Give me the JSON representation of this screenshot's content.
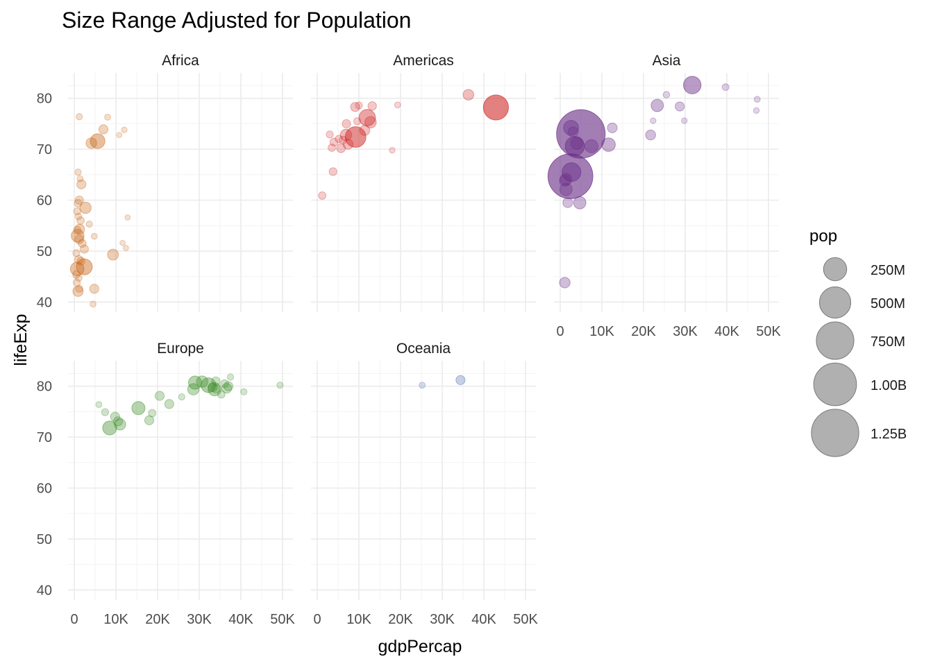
{
  "chart_data": {
    "type": "scatter",
    "title": "Size Range Adjusted for Population",
    "xlabel": "gdpPercap",
    "ylabel": "lifeExp",
    "xlim": [
      -1500,
      52500
    ],
    "ylim": [
      38,
      85
    ],
    "x_ticks": [
      0,
      10000,
      20000,
      30000,
      40000,
      50000
    ],
    "x_tick_labels": [
      "0",
      "10K",
      "20K",
      "30K",
      "40K",
      "50K"
    ],
    "y_ticks": [
      40,
      50,
      60,
      70,
      80
    ],
    "y_tick_labels": [
      "40",
      "50",
      "60",
      "70",
      "80"
    ],
    "grid": true,
    "facets": [
      {
        "name": "Africa",
        "color": "#c86414",
        "points": [
          {
            "gdp": 1200,
            "life": 76.4,
            "pop": 5
          },
          {
            "gdp": 8000,
            "life": 76.3,
            "pop": 4
          },
          {
            "gdp": 7000,
            "life": 73.9,
            "pop": 20
          },
          {
            "gdp": 12000,
            "life": 73.8,
            "pop": 3
          },
          {
            "gdp": 10800,
            "life": 72.8,
            "pop": 2
          },
          {
            "gdp": 5600,
            "life": 71.6,
            "pop": 80
          },
          {
            "gdp": 4100,
            "life": 71.2,
            "pop": 33
          },
          {
            "gdp": 900,
            "life": 65.5,
            "pop": 5
          },
          {
            "gdp": 1400,
            "life": 64.2,
            "pop": 4
          },
          {
            "gdp": 1700,
            "life": 63.1,
            "pop": 20
          },
          {
            "gdp": 1200,
            "life": 60.0,
            "pop": 15
          },
          {
            "gdp": 900,
            "life": 59.4,
            "pop": 10
          },
          {
            "gdp": 2700,
            "life": 58.5,
            "pop": 40
          },
          {
            "gdp": 700,
            "life": 57.8,
            "pop": 8
          },
          {
            "gdp": 1000,
            "life": 56.8,
            "pop": 6
          },
          {
            "gdp": 12800,
            "life": 56.6,
            "pop": 2
          },
          {
            "gdp": 1500,
            "life": 56.0,
            "pop": 10
          },
          {
            "gdp": 3600,
            "life": 55.3,
            "pop": 5
          },
          {
            "gdp": 1300,
            "life": 54.3,
            "pop": 25
          },
          {
            "gdp": 700,
            "life": 54.1,
            "pop": 10
          },
          {
            "gdp": 800,
            "life": 53.0,
            "pop": 55
          },
          {
            "gdp": 4800,
            "life": 52.9,
            "pop": 4
          },
          {
            "gdp": 1200,
            "life": 52.3,
            "pop": 20
          },
          {
            "gdp": 1900,
            "life": 51.5,
            "pop": 12
          },
          {
            "gdp": 11600,
            "life": 51.6,
            "pop": 2
          },
          {
            "gdp": 2400,
            "life": 50.4,
            "pop": 15
          },
          {
            "gdp": 12400,
            "life": 50.6,
            "pop": 2
          },
          {
            "gdp": 500,
            "life": 49.6,
            "pop": 8
          },
          {
            "gdp": 9300,
            "life": 49.3,
            "pop": 35
          },
          {
            "gdp": 1100,
            "life": 48.3,
            "pop": 15
          },
          {
            "gdp": 1600,
            "life": 48.0,
            "pop": 12
          },
          {
            "gdp": 700,
            "life": 46.5,
            "pop": 65
          },
          {
            "gdp": 2400,
            "life": 46.9,
            "pop": 100
          },
          {
            "gdp": 500,
            "life": 45.4,
            "pop": 10
          },
          {
            "gdp": 1100,
            "life": 44.7,
            "pop": 6
          },
          {
            "gdp": 600,
            "life": 43.8,
            "pop": 8
          },
          {
            "gdp": 1200,
            "life": 42.6,
            "pop": 8
          },
          {
            "gdp": 4800,
            "life": 42.6,
            "pop": 20
          },
          {
            "gdp": 900,
            "life": 42.1,
            "pop": 30
          },
          {
            "gdp": 4500,
            "life": 39.6,
            "pop": 4
          }
        ]
      },
      {
        "name": "Americas",
        "color": "#d23232",
        "points": [
          {
            "gdp": 36300,
            "life": 80.7,
            "pop": 33
          },
          {
            "gdp": 42900,
            "life": 78.2,
            "pop": 301
          },
          {
            "gdp": 9100,
            "life": 78.3,
            "pop": 20
          },
          {
            "gdp": 10000,
            "life": 78.6,
            "pop": 8
          },
          {
            "gdp": 13200,
            "life": 78.5,
            "pop": 16
          },
          {
            "gdp": 19300,
            "life": 78.7,
            "pop": 4
          },
          {
            "gdp": 12000,
            "life": 76.2,
            "pop": 108
          },
          {
            "gdp": 9600,
            "life": 75.5,
            "pop": 8
          },
          {
            "gdp": 12800,
            "life": 75.3,
            "pop": 40
          },
          {
            "gdp": 7000,
            "life": 75.0,
            "pop": 15
          },
          {
            "gdp": 11400,
            "life": 73.7,
            "pop": 28
          },
          {
            "gdp": 3000,
            "life": 72.9,
            "pop": 8
          },
          {
            "gdp": 6900,
            "life": 72.8,
            "pop": 40
          },
          {
            "gdp": 5200,
            "life": 72.0,
            "pop": 10
          },
          {
            "gdp": 6200,
            "life": 71.8,
            "pop": 12
          },
          {
            "gdp": 9200,
            "life": 72.4,
            "pop": 190
          },
          {
            "gdp": 4000,
            "life": 71.4,
            "pop": 12
          },
          {
            "gdp": 7400,
            "life": 71.0,
            "pop": 28
          },
          {
            "gdp": 3500,
            "life": 70.3,
            "pop": 10
          },
          {
            "gdp": 5700,
            "life": 70.2,
            "pop": 18
          },
          {
            "gdp": 18000,
            "life": 69.8,
            "pop": 3
          },
          {
            "gdp": 3800,
            "life": 65.6,
            "pop": 12
          },
          {
            "gdp": 1200,
            "life": 60.9,
            "pop": 10
          }
        ]
      },
      {
        "name": "Asia",
        "color": "#6a2f87",
        "points": [
          {
            "gdp": 31700,
            "life": 82.6,
            "pop": 127
          },
          {
            "gdp": 39700,
            "life": 82.2,
            "pop": 7
          },
          {
            "gdp": 47300,
            "life": 79.8,
            "pop": 4
          },
          {
            "gdp": 47100,
            "life": 77.6,
            "pop": 3
          },
          {
            "gdp": 25500,
            "life": 80.7,
            "pop": 6
          },
          {
            "gdp": 23300,
            "life": 78.6,
            "pop": 50
          },
          {
            "gdp": 28700,
            "life": 78.4,
            "pop": 20
          },
          {
            "gdp": 22300,
            "life": 75.6,
            "pop": 3
          },
          {
            "gdp": 29800,
            "life": 75.6,
            "pop": 3
          },
          {
            "gdp": 12500,
            "life": 74.2,
            "pop": 25
          },
          {
            "gdp": 21700,
            "life": 72.8,
            "pop": 27
          },
          {
            "gdp": 4960,
            "life": 73.0,
            "pop": 1319
          },
          {
            "gdp": 2600,
            "life": 74.2,
            "pop": 85
          },
          {
            "gdp": 3100,
            "life": 73.4,
            "pop": 30
          },
          {
            "gdp": 4000,
            "life": 71.2,
            "pop": 50
          },
          {
            "gdp": 3500,
            "life": 70.6,
            "pop": 160
          },
          {
            "gdp": 7500,
            "life": 70.6,
            "pop": 60
          },
          {
            "gdp": 11600,
            "life": 70.9,
            "pop": 65
          },
          {
            "gdp": 2450,
            "life": 64.7,
            "pop": 1110
          },
          {
            "gdp": 2700,
            "life": 65.5,
            "pop": 150
          },
          {
            "gdp": 1400,
            "life": 64.1,
            "pop": 45
          },
          {
            "gdp": 1100,
            "life": 63.8,
            "pop": 35
          },
          {
            "gdp": 1400,
            "life": 62.1,
            "pop": 50
          },
          {
            "gdp": 1800,
            "life": 59.5,
            "pop": 25
          },
          {
            "gdp": 4700,
            "life": 59.5,
            "pop": 50
          },
          {
            "gdp": 1100,
            "life": 43.8,
            "pop": 32
          }
        ]
      },
      {
        "name": "Europe",
        "color": "#3c8c28",
        "points": [
          {
            "gdp": 37500,
            "life": 81.8,
            "pop": 5
          },
          {
            "gdp": 34000,
            "life": 81.0,
            "pop": 15
          },
          {
            "gdp": 30700,
            "life": 80.9,
            "pop": 40
          },
          {
            "gdp": 29000,
            "life": 80.7,
            "pop": 60
          },
          {
            "gdp": 36100,
            "life": 80.5,
            "pop": 12
          },
          {
            "gdp": 49400,
            "life": 80.2,
            "pop": 5
          },
          {
            "gdp": 32200,
            "life": 80.2,
            "pop": 80
          },
          {
            "gdp": 37000,
            "life": 80.0,
            "pop": 20
          },
          {
            "gdp": 28600,
            "life": 79.4,
            "pop": 40
          },
          {
            "gdp": 33700,
            "life": 79.4,
            "pop": 60
          },
          {
            "gdp": 36600,
            "life": 79.6,
            "pop": 25
          },
          {
            "gdp": 33200,
            "life": 79.8,
            "pop": 20
          },
          {
            "gdp": 34000,
            "life": 79.5,
            "pop": 15
          },
          {
            "gdp": 40700,
            "life": 78.9,
            "pop": 5
          },
          {
            "gdp": 35300,
            "life": 78.4,
            "pop": 10
          },
          {
            "gdp": 20500,
            "life": 78.1,
            "pop": 20
          },
          {
            "gdp": 25800,
            "life": 77.9,
            "pop": 5
          },
          {
            "gdp": 5900,
            "life": 76.4,
            "pop": 4
          },
          {
            "gdp": 22800,
            "life": 76.5,
            "pop": 20
          },
          {
            "gdp": 15400,
            "life": 75.7,
            "pop": 60
          },
          {
            "gdp": 7400,
            "life": 74.9,
            "pop": 8
          },
          {
            "gdp": 18700,
            "life": 74.7,
            "pop": 10
          },
          {
            "gdp": 9800,
            "life": 74.0,
            "pop": 20
          },
          {
            "gdp": 18000,
            "life": 73.3,
            "pop": 20
          },
          {
            "gdp": 10500,
            "life": 73.1,
            "pop": 20
          },
          {
            "gdp": 11000,
            "life": 72.5,
            "pop": 38
          },
          {
            "gdp": 8500,
            "life": 71.8,
            "pop": 71
          }
        ]
      },
      {
        "name": "Oceania",
        "color": "#3a5ba0",
        "points": [
          {
            "gdp": 34400,
            "life": 81.2,
            "pop": 20
          },
          {
            "gdp": 25200,
            "life": 80.2,
            "pop": 4
          }
        ]
      }
    ],
    "legend": {
      "title": "pop",
      "placement": "right",
      "entries": [
        {
          "label": "250M",
          "value": 250
        },
        {
          "label": "500M",
          "value": 500
        },
        {
          "label": "750M",
          "value": 750
        },
        {
          "label": "1.00B",
          "value": 1000
        },
        {
          "label": "1.25B",
          "value": 1250
        }
      ]
    }
  }
}
